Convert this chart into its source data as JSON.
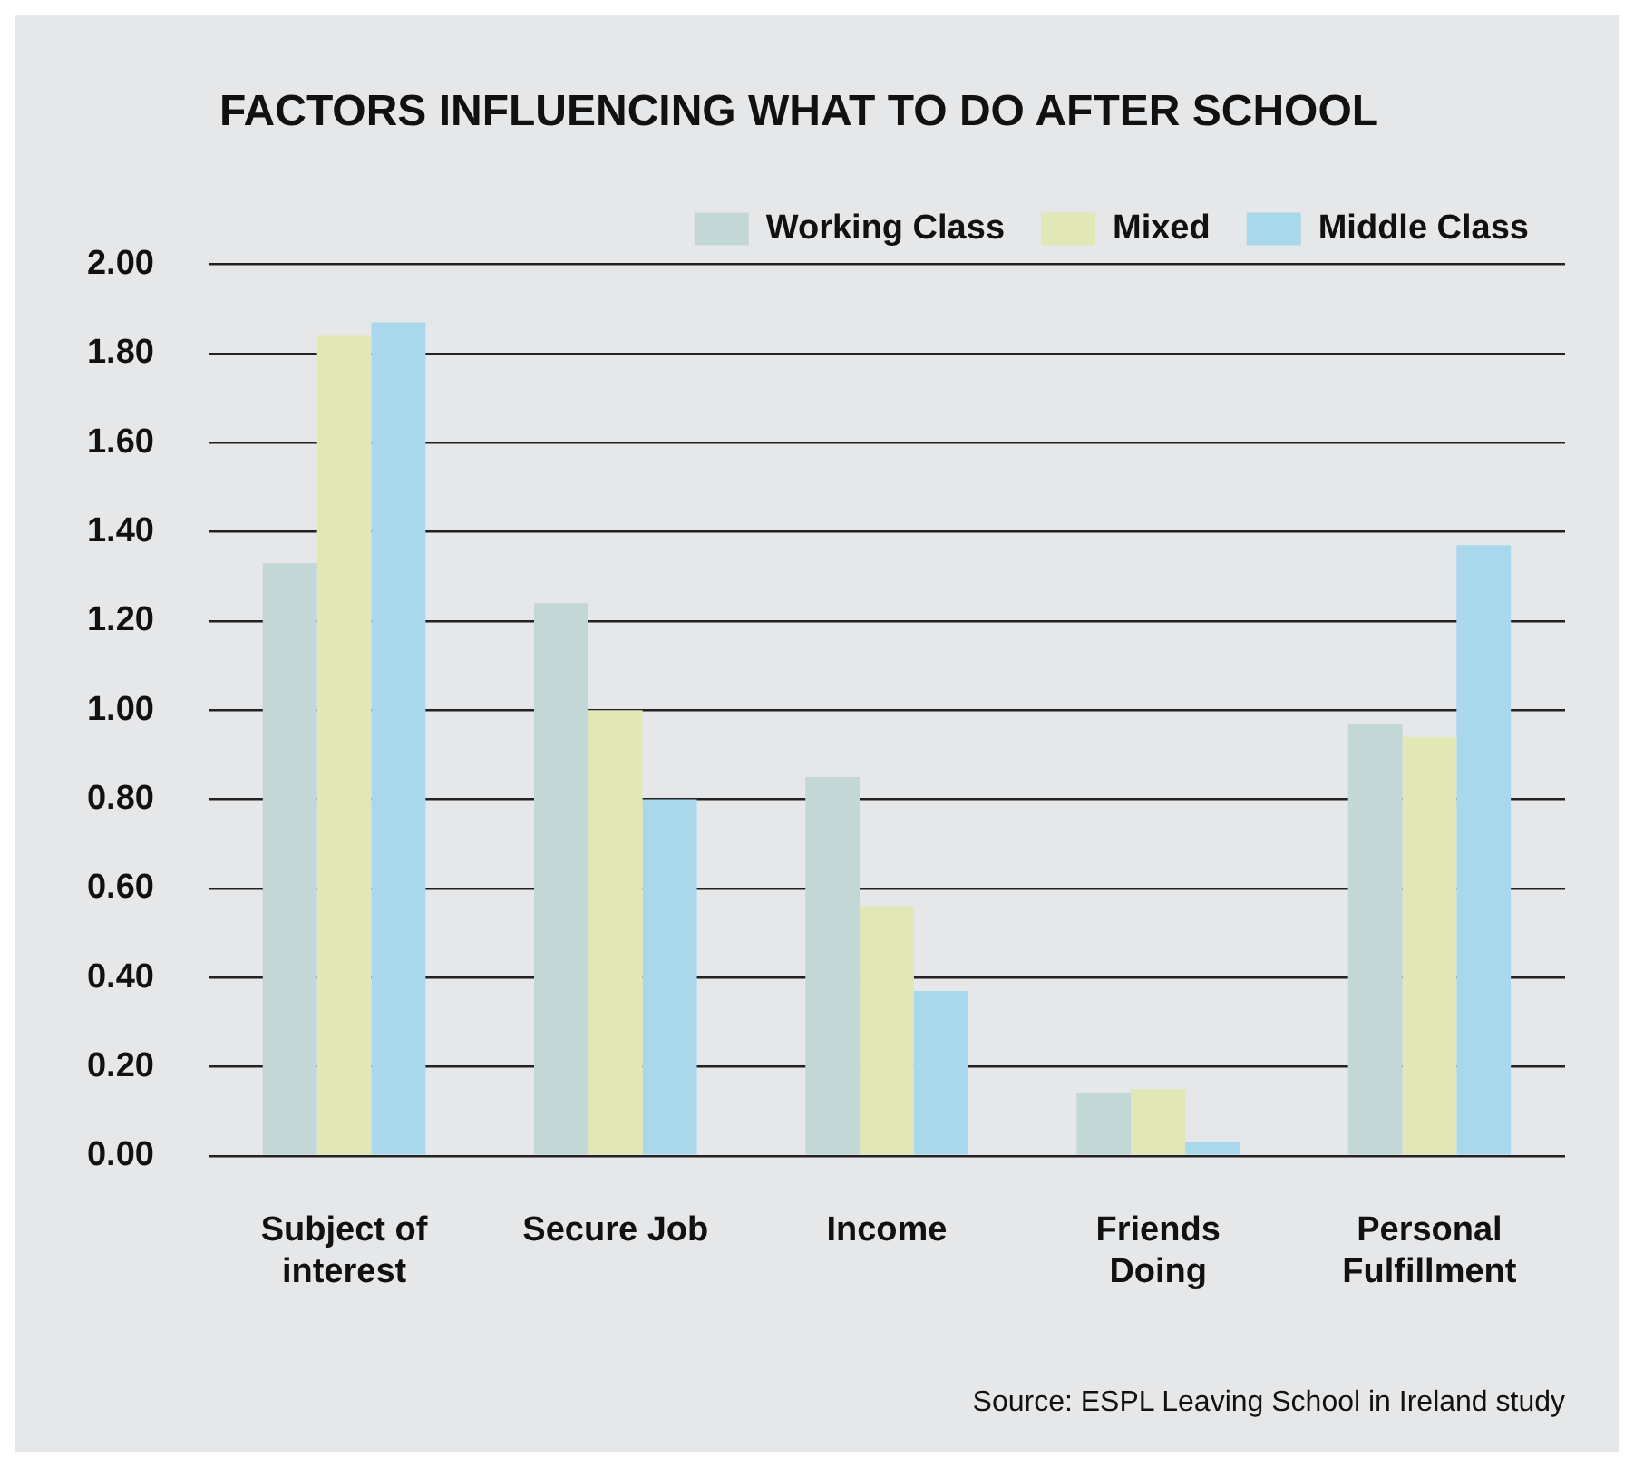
{
  "chart_data": {
    "type": "bar",
    "title": "FACTORS INFLUENCING WHAT TO DO AFTER SCHOOL",
    "categories": [
      "Subject of interest",
      "Secure Job",
      "Income",
      "Friends Doing",
      "Personal Fulfillment"
    ],
    "series": [
      {
        "name": "Working Class",
        "color": "#c3d8d6",
        "values": [
          1.33,
          1.24,
          0.85,
          0.14,
          0.97
        ]
      },
      {
        "name": "Mixed",
        "color": "#e2e7b6",
        "values": [
          1.84,
          1.0,
          0.56,
          0.15,
          0.94
        ]
      },
      {
        "name": "Middle Class",
        "color": "#a9d8ec",
        "values": [
          1.87,
          0.8,
          0.37,
          0.03,
          1.37
        ]
      }
    ],
    "ylim": [
      0,
      2
    ],
    "yticks": [
      {
        "value": 0,
        "label": "0.00"
      },
      {
        "value": 0.2,
        "label": "0.20"
      },
      {
        "value": 0.4,
        "label": "0.40"
      },
      {
        "value": 0.6,
        "label": "0.60"
      },
      {
        "value": 0.8,
        "label": "0.80"
      },
      {
        "value": 1,
        "label": "1.00"
      },
      {
        "value": 1.2,
        "label": "1.20"
      },
      {
        "value": 1.4,
        "label": "1.40"
      },
      {
        "value": 1.6,
        "label": "1.60"
      },
      {
        "value": 1.8,
        "label": "1.80"
      },
      {
        "value": 2,
        "label": "2.00"
      }
    ],
    "grid": "y",
    "legend": "top right",
    "annotations": [
      "Source: ESPL Leaving School in Ireland study"
    ]
  }
}
